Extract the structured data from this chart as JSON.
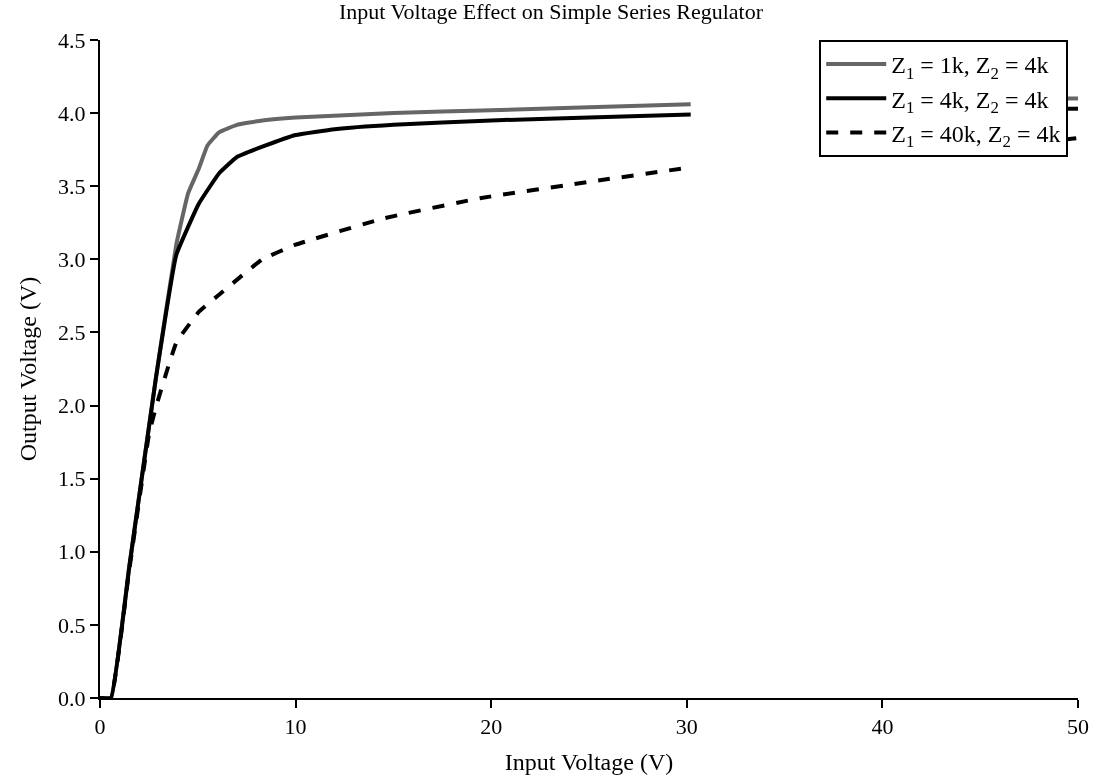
{
  "chart_data": {
    "type": "line",
    "title": "Input Voltage Effect on Simple Series Regulator",
    "xlabel": "Input Voltage (V)",
    "ylabel": "Output Voltage (V)",
    "xlim": [
      0,
      50
    ],
    "xticks": [
      0,
      10,
      20,
      30,
      40,
      50
    ],
    "ylim": [
      0,
      4.5
    ],
    "yticks": [
      {
        "value": 0,
        "label": "0.0"
      },
      0.5,
      {
        "value": 1,
        "label": "1.0"
      },
      1.5,
      {
        "value": 2,
        "label": "2.0"
      },
      2.5,
      {
        "value": 3,
        "label": "3.0"
      },
      3.5,
      {
        "value": 4,
        "label": "4.0"
      },
      4.5
    ],
    "legend": "top right",
    "marker": "none",
    "series": [
      {
        "name": "Z$_{1}$ = 1k, Z$_{2}$ = 4k",
        "color": "#666666",
        "line_style": "solid",
        "x": [
          0,
          0.56,
          1.5,
          2.86,
          3.9,
          4.5,
          5.05,
          5.5,
          6.1,
          7,
          8.3,
          10,
          15,
          20,
          25,
          30.2,
          40,
          49.3,
          50
        ],
        "values": [
          0,
          0,
          0.9,
          2.19,
          3.1,
          3.45,
          3.62,
          3.78,
          3.87,
          3.92,
          3.95,
          3.97,
          4.0,
          4.02,
          4.04,
          4.06,
          null,
          4.1,
          4.1
        ]
      },
      {
        "name": "Z$_{1}$ = 4k, Z$_{2}$ = 4k",
        "color": "#000000",
        "line_style": "solid",
        "x": [
          0,
          0.56,
          1.5,
          2.86,
          3.9,
          5.05,
          6.1,
          7,
          8.3,
          10,
          12,
          15,
          20,
          25,
          30.2,
          40,
          49.3,
          50
        ],
        "values": [
          0,
          0,
          0.9,
          2.19,
          3.03,
          3.38,
          3.59,
          3.7,
          3.77,
          3.85,
          3.89,
          3.92,
          3.95,
          3.97,
          3.99,
          null,
          4.03,
          4.03
        ]
      },
      {
        "name": "Z$_{1}$ = 40k, Z$_{2}$ = 4k",
        "color": "#000000",
        "line_style": "dashed",
        "x": [
          0,
          0.56,
          1.5,
          2.5,
          2.86,
          3.9,
          5.05,
          6.1,
          8.3,
          10,
          14.5,
          19.5,
          25,
          29.7,
          40,
          49.3,
          50
        ],
        "values": [
          0,
          0,
          0.88,
          1.8,
          1.99,
          2.43,
          2.64,
          2.76,
          3.0,
          3.1,
          3.28,
          3.42,
          3.53,
          3.62,
          null,
          3.82,
          3.83
        ]
      }
    ]
  }
}
